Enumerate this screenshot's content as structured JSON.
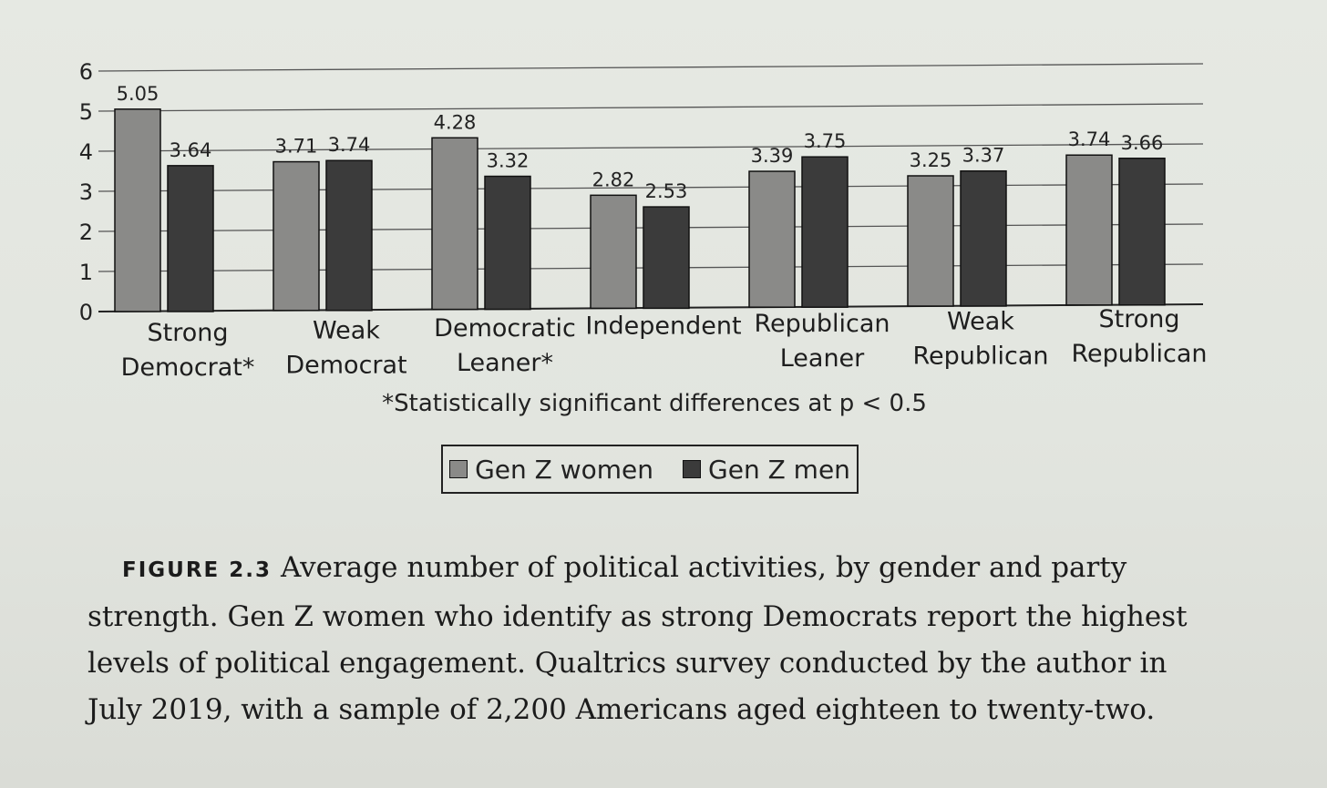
{
  "chart_data": {
    "type": "bar",
    "title": "",
    "xlabel": "",
    "ylabel": "",
    "ylim": [
      0,
      6
    ],
    "yticks": [
      "0",
      "1",
      "2",
      "3",
      "4",
      "5",
      "6"
    ],
    "grid": "horizontal",
    "categories": [
      [
        "Strong",
        "Democrat*"
      ],
      [
        "Weak",
        "Democrat"
      ],
      [
        "Democratic",
        "Leaner*"
      ],
      [
        "Independent",
        ""
      ],
      [
        "Republican",
        "Leaner"
      ],
      [
        "Weak",
        "Republican"
      ],
      [
        "Strong",
        "Republican"
      ]
    ],
    "series": [
      {
        "name": "Gen Z women",
        "color": "#8a8a88",
        "values": [
          5.05,
          3.71,
          4.28,
          2.82,
          3.39,
          3.25,
          3.74
        ],
        "labels": [
          "5.05",
          "3.71",
          "4.28",
          "2.82",
          "3.39",
          "3.25",
          "3.74"
        ]
      },
      {
        "name": "Gen Z men",
        "color": "#3b3b3b",
        "values": [
          3.64,
          3.74,
          3.32,
          2.53,
          3.75,
          3.37,
          3.66
        ],
        "labels": [
          "3.64",
          "3.74",
          "3.32",
          "2.53",
          "3.75",
          "3.37",
          "3.66"
        ]
      }
    ],
    "legend_position": "bottom-center",
    "footnote": "*Statistically significant differences at p < 0.5"
  },
  "caption": {
    "label": "FIGURE 2.3",
    "text": "Average number of political activities, by gender and party strength. Gen Z women who identify as strong Democrats report the highest levels of political engagement. Qualtrics survey conducted by the author in July 2019, with a sample of 2,200 Americans aged eighteen to twenty-two."
  }
}
